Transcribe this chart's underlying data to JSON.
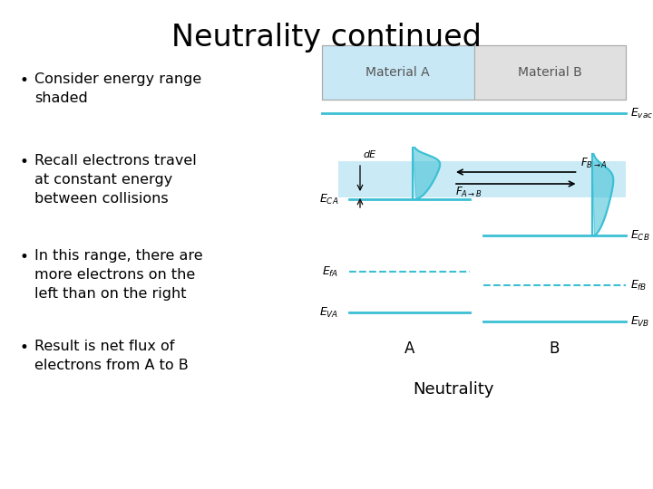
{
  "title": "Neutrality continued",
  "title_fontsize": 24,
  "bullet_points": [
    "Consider energy range\nshaded",
    "Recall electrons travel\nat constant energy\nbetween collisions",
    "In this range, there are\nmore electrons on the\nleft than on the right",
    "Result is net flux of\nelectrons from A to B"
  ],
  "bullet_fontsize": 11.5,
  "caption": "Neutrality",
  "caption_fontsize": 13,
  "bg_color": "#ffffff",
  "text_color": "#000000",
  "cyan_color": "#3bbfd4",
  "light_blue_fill": "#c8e8f5",
  "light_gray_fill": "#e0e0e0",
  "dashed_color": "#3bbfd4",
  "label_color": "#555555"
}
